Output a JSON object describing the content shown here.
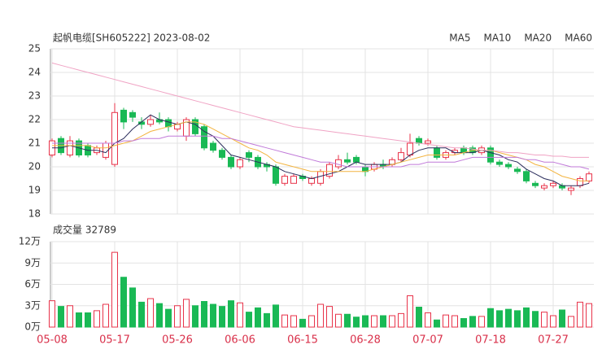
{
  "chart_data": [
    {
      "type": "candlestick",
      "title": "起帆电缆[SH605222] 2023-08-02",
      "categories": [
        "05-08",
        null,
        null,
        null,
        null,
        null,
        null,
        "05-17",
        null,
        null,
        null,
        null,
        null,
        null,
        "05-26",
        null,
        null,
        null,
        null,
        null,
        null,
        "06-06",
        null,
        null,
        null,
        null,
        null,
        null,
        "06-15",
        null,
        null,
        null,
        null,
        null,
        null,
        "06-28",
        null,
        null,
        null,
        null,
        null,
        null,
        "07-07",
        null,
        null,
        null,
        null,
        null,
        null,
        "07-18",
        null,
        null,
        null,
        null,
        null,
        null,
        "07-27",
        null,
        null,
        null,
        null
      ],
      "open": [
        20.5,
        21.2,
        20.5,
        21.1,
        20.9,
        20.6,
        20.4,
        20.1,
        22.4,
        22.3,
        21.9,
        21.8,
        22.0,
        22.0,
        21.6,
        21.3,
        22.0,
        21.7,
        21.0,
        20.7,
        20.4,
        20.0,
        20.6,
        20.4,
        20.1,
        20.0,
        19.3,
        19.3,
        19.6,
        19.3,
        19.3,
        19.6,
        20.0,
        20.3,
        20.4,
        20.0,
        19.9,
        20.1,
        20.1,
        20.3,
        20.5,
        21.2,
        21.0,
        20.8,
        20.4,
        20.6,
        20.8,
        20.8,
        20.6,
        20.8,
        20.2,
        20.1,
        19.9,
        19.8,
        19.3,
        19.1,
        19.2,
        19.2,
        19.0,
        19.2,
        19.4
      ],
      "high": [
        21.2,
        21.3,
        21.3,
        21.2,
        21.0,
        20.9,
        21.1,
        22.7,
        22.5,
        22.4,
        22.1,
        22.2,
        22.3,
        22.1,
        21.9,
        22.1,
        22.1,
        21.8,
        21.1,
        20.8,
        20.5,
        20.4,
        20.7,
        20.5,
        20.2,
        20.1,
        19.7,
        19.7,
        19.7,
        19.6,
        19.9,
        20.2,
        20.5,
        20.6,
        20.5,
        20.1,
        20.2,
        20.3,
        20.4,
        20.8,
        21.4,
        21.3,
        21.2,
        20.9,
        20.7,
        20.8,
        20.9,
        20.9,
        20.9,
        20.9,
        20.3,
        20.2,
        20.0,
        19.9,
        19.4,
        19.3,
        19.4,
        19.3,
        19.2,
        19.6,
        19.8
      ],
      "low": [
        20.4,
        20.5,
        20.4,
        20.4,
        20.4,
        20.5,
        20.3,
        20.0,
        21.6,
        21.9,
        21.6,
        21.7,
        21.8,
        21.5,
        21.5,
        21.1,
        21.3,
        20.7,
        20.6,
        20.3,
        19.9,
        19.9,
        20.2,
        19.9,
        19.8,
        19.2,
        19.2,
        19.3,
        19.4,
        19.2,
        19.2,
        19.5,
        19.9,
        20.1,
        20.1,
        19.6,
        19.8,
        19.9,
        20.0,
        20.2,
        20.4,
        20.9,
        20.9,
        20.3,
        20.3,
        20.5,
        20.5,
        20.5,
        20.5,
        20.1,
        20.0,
        19.9,
        19.7,
        19.3,
        19.1,
        19.0,
        19.1,
        19.0,
        18.8,
        19.1,
        19.3
      ],
      "close": [
        21.1,
        20.6,
        21.1,
        20.5,
        20.5,
        20.8,
        21.0,
        22.3,
        21.9,
        22.1,
        21.8,
        22.0,
        21.9,
        21.7,
        21.8,
        22.0,
        21.4,
        20.8,
        20.7,
        20.4,
        20.0,
        20.3,
        20.4,
        20.0,
        20.0,
        19.3,
        19.6,
        19.6,
        19.5,
        19.5,
        19.8,
        20.1,
        20.3,
        20.2,
        20.2,
        19.8,
        20.1,
        20.0,
        20.3,
        20.6,
        21.0,
        21.0,
        21.1,
        20.4,
        20.6,
        20.7,
        20.6,
        20.6,
        20.8,
        20.2,
        20.1,
        20.0,
        19.8,
        19.4,
        19.2,
        19.2,
        19.3,
        19.1,
        19.1,
        19.5,
        19.7
      ],
      "up_color": "#e8334a",
      "down_color": "#19b955",
      "ylim": [
        18,
        25
      ],
      "yticks": [
        18,
        19,
        20,
        21,
        22,
        23,
        24,
        25
      ],
      "grid": true,
      "legend": "top-right",
      "series": [
        {
          "name": "MA5",
          "color": "#2b2d5c",
          "values": [
            20.8,
            20.8,
            20.9,
            20.8,
            20.7,
            20.7,
            20.6,
            21.0,
            21.2,
            21.6,
            21.9,
            22.2,
            22.0,
            21.9,
            21.8,
            21.9,
            21.8,
            21.5,
            21.3,
            20.9,
            20.5,
            20.4,
            20.3,
            20.2,
            20.1,
            20.0,
            19.8,
            19.7,
            19.6,
            19.5,
            19.6,
            19.7,
            19.8,
            20.0,
            20.2,
            20.1,
            20.1,
            20.1,
            20.1,
            20.2,
            20.5,
            20.7,
            20.8,
            20.8,
            20.8,
            20.6,
            20.6,
            20.6,
            20.7,
            20.6,
            20.5,
            20.3,
            20.2,
            19.9,
            19.7,
            19.5,
            19.4,
            19.2,
            19.2,
            19.2,
            19.3
          ]
        },
        {
          "name": "MA10",
          "color": "#f3b440",
          "values": [
            20.9,
            20.9,
            20.9,
            20.9,
            20.9,
            20.8,
            20.8,
            20.9,
            21.0,
            21.1,
            21.3,
            21.5,
            21.6,
            21.7,
            21.8,
            21.9,
            21.9,
            21.8,
            21.6,
            21.4,
            21.2,
            21.0,
            20.8,
            20.7,
            20.5,
            20.2,
            20.1,
            20.0,
            19.9,
            19.8,
            19.8,
            19.8,
            19.8,
            19.8,
            19.8,
            19.8,
            19.9,
            20.0,
            20.1,
            20.2,
            20.3,
            20.4,
            20.5,
            20.5,
            20.5,
            20.5,
            20.6,
            20.7,
            20.7,
            20.7,
            20.6,
            20.5,
            20.4,
            20.3,
            20.1,
            20.0,
            19.8,
            19.6,
            19.5,
            19.4,
            19.4
          ]
        },
        {
          "name": "MA20",
          "color": "#c17ad9",
          "values": [
            21.0,
            21.0,
            21.0,
            21.0,
            21.0,
            21.0,
            21.0,
            21.0,
            21.1,
            21.1,
            21.2,
            21.2,
            21.2,
            21.3,
            21.3,
            21.3,
            21.3,
            21.3,
            21.3,
            21.2,
            21.2,
            21.1,
            21.0,
            20.9,
            20.8,
            20.7,
            20.6,
            20.5,
            20.4,
            20.3,
            20.2,
            20.2,
            20.1,
            20.0,
            20.0,
            20.0,
            20.0,
            20.0,
            20.0,
            20.0,
            20.1,
            20.1,
            20.2,
            20.2,
            20.2,
            20.2,
            20.3,
            20.4,
            20.4,
            20.4,
            20.4,
            20.4,
            20.4,
            20.3,
            20.3,
            20.2,
            20.2,
            20.1,
            20.0,
            20.0,
            19.9
          ]
        },
        {
          "name": "MA60",
          "color": "#f0a3c4",
          "values": [
            24.4,
            24.3,
            24.2,
            24.1,
            24.0,
            23.9,
            23.8,
            23.7,
            23.6,
            23.5,
            23.4,
            23.3,
            23.2,
            23.1,
            23.0,
            22.9,
            22.8,
            22.7,
            22.6,
            22.5,
            22.4,
            22.3,
            22.2,
            22.1,
            22.0,
            21.9,
            21.8,
            21.7,
            21.65,
            21.6,
            21.55,
            21.5,
            21.45,
            21.4,
            21.35,
            21.3,
            21.25,
            21.2,
            21.15,
            21.1,
            21.05,
            21.0,
            20.95,
            20.9,
            20.85,
            20.8,
            20.8,
            20.75,
            20.7,
            20.7,
            20.65,
            20.6,
            20.6,
            20.55,
            20.5,
            20.5,
            20.45,
            20.45,
            20.4,
            20.4,
            20.4
          ]
        }
      ]
    },
    {
      "type": "bar",
      "title": "成交量 32789",
      "values": [
        3.7,
        2.9,
        3.0,
        2.0,
        2.0,
        2.3,
        3.2,
        10.5,
        7.0,
        5.5,
        3.5,
        4.0,
        3.3,
        2.5,
        3.0,
        3.9,
        3.0,
        3.6,
        3.2,
        2.9,
        3.7,
        3.4,
        2.1,
        2.7,
        1.9,
        3.1,
        1.7,
        1.6,
        1.1,
        1.6,
        3.2,
        2.9,
        1.8,
        1.8,
        1.4,
        1.6,
        1.6,
        1.6,
        1.6,
        1.9,
        4.4,
        2.8,
        2.0,
        1.0,
        1.7,
        1.6,
        1.2,
        1.5,
        1.5,
        2.6,
        2.3,
        2.5,
        2.3,
        2.7,
        2.2,
        2.1,
        1.6,
        2.4,
        1.5,
        3.5,
        3.3
      ],
      "ylim": [
        0,
        12
      ],
      "yticks": [
        {
          "value": 0,
          "label": "0万"
        },
        {
          "value": 3,
          "label": "3万"
        },
        {
          "value": 6,
          "label": "6万"
        },
        {
          "value": 9,
          "label": "9万"
        },
        {
          "value": 12,
          "label": "12万"
        }
      ],
      "grid": true
    }
  ]
}
